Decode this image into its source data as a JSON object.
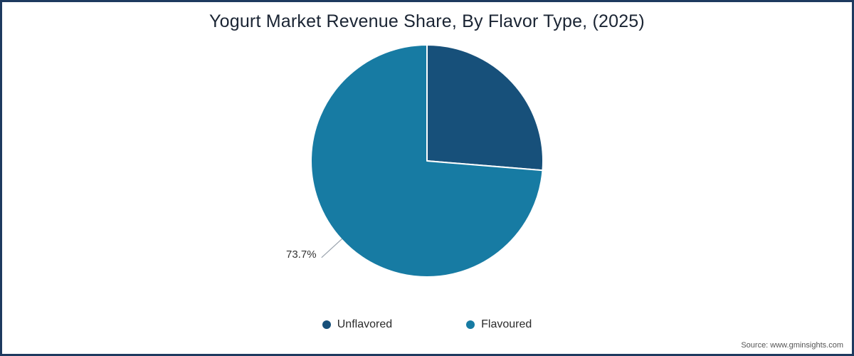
{
  "header": {
    "title": "Yogurt Market Revenue Share, By Flavor Type, (2025)"
  },
  "chart_data": {
    "type": "pie",
    "title": "Yogurt Market Revenue Share, By Flavor Type, (2025)",
    "categories": [
      "Unflavored",
      "Flavoured"
    ],
    "values": [
      26.3,
      73.7
    ],
    "colors": [
      "#17507a",
      "#177ba3"
    ],
    "start_angle_deg": -90,
    "direction": "clockwise",
    "data_labels": [
      {
        "category": "Flavoured",
        "text": "73.7%",
        "position": "outside-lower-left"
      }
    ],
    "legend_position": "bottom"
  },
  "pie_label": {
    "text": "73.7%"
  },
  "legend": {
    "items": [
      {
        "label": "Unflavored",
        "color": "#17507a"
      },
      {
        "label": "Flavoured",
        "color": "#177ba3"
      }
    ]
  },
  "footer": {
    "source": "Source: www.gminsights.com"
  },
  "frame": {
    "border_color": "#1d3a5f"
  }
}
